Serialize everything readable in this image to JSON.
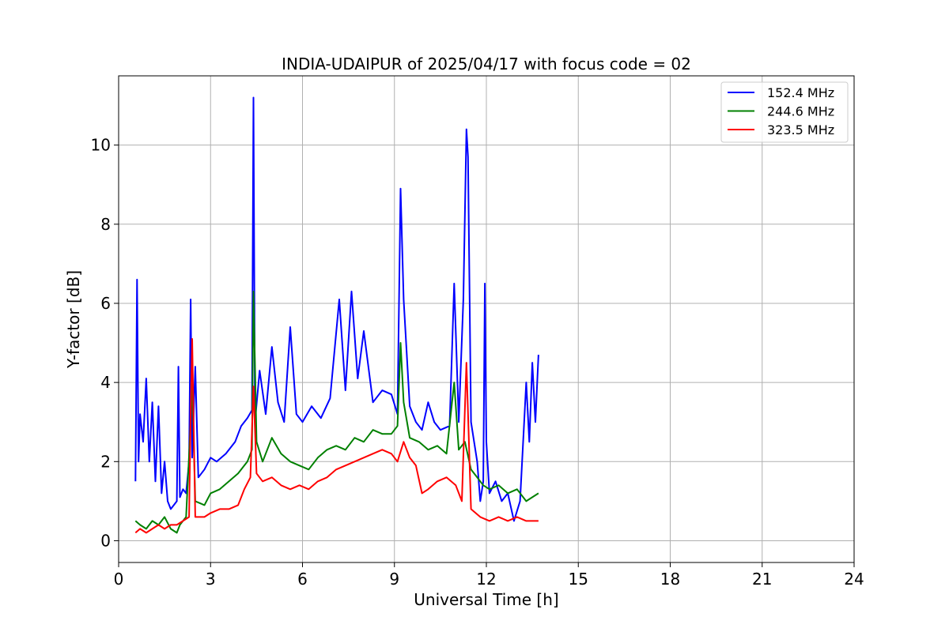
{
  "chart_data": {
    "type": "line",
    "title": "INDIA-UDAIPUR of 2025/04/17 with focus code = 02",
    "xlabel": "Universal Time [h]",
    "ylabel": "Y-factor [dB]",
    "xlim": [
      0,
      24
    ],
    "ylim": [
      -0.55,
      11.75
    ],
    "xticks": [
      0,
      3,
      6,
      9,
      12,
      15,
      18,
      21,
      24
    ],
    "yticks": [
      0,
      2,
      4,
      6,
      8,
      10
    ],
    "grid": true,
    "legend_position": "top-right",
    "series": [
      {
        "name": "152.4 MHz",
        "color": "#0000ff",
        "x": [
          0.55,
          0.6,
          0.65,
          0.7,
          0.8,
          0.9,
          1.0,
          1.1,
          1.2,
          1.3,
          1.4,
          1.5,
          1.6,
          1.7,
          1.8,
          1.9,
          1.95,
          2.0,
          2.1,
          2.2,
          2.3,
          2.35,
          2.4,
          2.5,
          2.6,
          2.8,
          3.0,
          3.2,
          3.5,
          3.8,
          4.0,
          4.2,
          4.35,
          4.4,
          4.45,
          4.6,
          4.8,
          5.0,
          5.2,
          5.4,
          5.6,
          5.8,
          6.0,
          6.3,
          6.6,
          6.9,
          7.2,
          7.4,
          7.6,
          7.8,
          8.0,
          8.3,
          8.6,
          8.9,
          9.1,
          9.2,
          9.3,
          9.5,
          9.7,
          9.9,
          10.1,
          10.3,
          10.5,
          10.8,
          10.95,
          11.1,
          11.25,
          11.35,
          11.4,
          11.5,
          11.6,
          11.7,
          11.8,
          11.9,
          11.95,
          12.0,
          12.1,
          12.3,
          12.5,
          12.7,
          12.9,
          13.1,
          13.3,
          13.4,
          13.5,
          13.6,
          13.7
        ],
        "y": [
          1.5,
          6.6,
          2.0,
          3.2,
          2.5,
          4.1,
          2.0,
          3.5,
          1.5,
          3.4,
          1.2,
          2.0,
          1.0,
          0.8,
          0.9,
          1.0,
          4.4,
          1.1,
          1.3,
          1.2,
          2.0,
          6.1,
          2.1,
          4.4,
          1.6,
          1.8,
          2.1,
          2.0,
          2.2,
          2.5,
          2.9,
          3.1,
          3.3,
          11.2,
          3.0,
          4.3,
          3.2,
          4.9,
          3.5,
          3.0,
          5.4,
          3.2,
          3.0,
          3.4,
          3.1,
          3.6,
          6.1,
          3.8,
          6.3,
          4.1,
          5.3,
          3.5,
          3.8,
          3.7,
          3.2,
          8.9,
          6.1,
          3.4,
          3.0,
          2.8,
          3.5,
          3.0,
          2.8,
          2.9,
          6.5,
          3.0,
          6.1,
          10.4,
          9.7,
          3.0,
          2.5,
          2.0,
          1.0,
          1.5,
          6.5,
          2.5,
          1.2,
          1.5,
          1.0,
          1.2,
          0.5,
          1.0,
          4.0,
          2.5,
          4.5,
          3.0,
          4.7
        ]
      },
      {
        "name": "244.6 MHz",
        "color": "#008000",
        "x": [
          0.55,
          0.7,
          0.9,
          1.1,
          1.3,
          1.5,
          1.7,
          1.9,
          2.0,
          2.2,
          2.35,
          2.4,
          2.5,
          2.8,
          3.0,
          3.3,
          3.6,
          3.9,
          4.2,
          4.35,
          4.4,
          4.5,
          4.7,
          5.0,
          5.3,
          5.6,
          5.9,
          6.2,
          6.5,
          6.8,
          7.1,
          7.4,
          7.7,
          8.0,
          8.3,
          8.6,
          8.9,
          9.1,
          9.2,
          9.3,
          9.5,
          9.8,
          10.1,
          10.4,
          10.7,
          10.95,
          11.1,
          11.3,
          11.5,
          11.7,
          11.9,
          12.1,
          12.4,
          12.7,
          13.0,
          13.3,
          13.5,
          13.7
        ],
        "y": [
          0.5,
          0.4,
          0.3,
          0.5,
          0.4,
          0.6,
          0.3,
          0.2,
          0.4,
          0.6,
          3.0,
          4.1,
          1.0,
          0.9,
          1.2,
          1.3,
          1.5,
          1.7,
          2.0,
          2.3,
          6.3,
          2.5,
          2.0,
          2.6,
          2.2,
          2.0,
          1.9,
          1.8,
          2.1,
          2.3,
          2.4,
          2.3,
          2.6,
          2.5,
          2.8,
          2.7,
          2.7,
          2.9,
          5.0,
          3.5,
          2.6,
          2.5,
          2.3,
          2.4,
          2.2,
          4.0,
          2.3,
          2.5,
          1.8,
          1.6,
          1.4,
          1.3,
          1.4,
          1.2,
          1.3,
          1.0,
          1.1,
          1.2
        ]
      },
      {
        "name": "323.5 MHz",
        "color": "#ff0000",
        "x": [
          0.55,
          0.7,
          0.9,
          1.1,
          1.3,
          1.5,
          1.7,
          1.9,
          2.1,
          2.3,
          2.35,
          2.4,
          2.5,
          2.8,
          3.0,
          3.3,
          3.6,
          3.9,
          4.1,
          4.3,
          4.4,
          4.5,
          4.7,
          5.0,
          5.3,
          5.6,
          5.9,
          6.2,
          6.5,
          6.8,
          7.1,
          7.4,
          7.7,
          8.0,
          8.3,
          8.6,
          8.9,
          9.1,
          9.3,
          9.5,
          9.7,
          9.9,
          10.1,
          10.4,
          10.7,
          11.0,
          11.2,
          11.35,
          11.5,
          11.8,
          12.1,
          12.4,
          12.7,
          13.0,
          13.3,
          13.5,
          13.7
        ],
        "y": [
          0.2,
          0.3,
          0.2,
          0.3,
          0.4,
          0.3,
          0.4,
          0.4,
          0.5,
          0.6,
          3.2,
          5.1,
          0.6,
          0.6,
          0.7,
          0.8,
          0.8,
          0.9,
          1.3,
          1.6,
          3.9,
          1.7,
          1.5,
          1.6,
          1.4,
          1.3,
          1.4,
          1.3,
          1.5,
          1.6,
          1.8,
          1.9,
          2.0,
          2.1,
          2.2,
          2.3,
          2.2,
          2.0,
          2.5,
          2.1,
          1.9,
          1.2,
          1.3,
          1.5,
          1.6,
          1.4,
          1.0,
          4.5,
          0.8,
          0.6,
          0.5,
          0.6,
          0.5,
          0.6,
          0.5,
          0.5,
          0.5
        ]
      }
    ]
  }
}
